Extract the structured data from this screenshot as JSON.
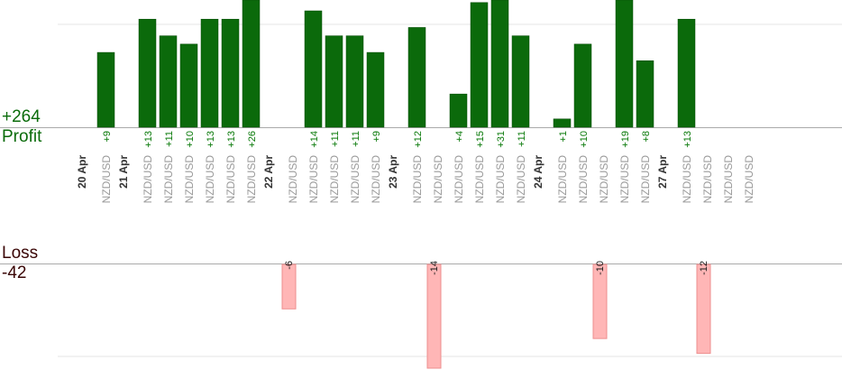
{
  "colors": {
    "profit_bar": "#0b6a0b",
    "profit_bar_edge": "#064a06",
    "profit_text": "#0a7a0a",
    "loss_bar": "#ffb6b6",
    "loss_bar_edge": "#ee8f8f",
    "loss_text": "#1a1a1a",
    "summary_profit": "#0a6b0a",
    "summary_loss": "#3a0606",
    "date_text": "#333333",
    "pair_text": "#9a9a9a",
    "axis": "#aaaaaa",
    "grid": "#e6e6e6"
  },
  "summary": {
    "profit_total": "+264",
    "profit_label": "Profit",
    "loss_label": "Loss",
    "loss_total": "-42"
  },
  "chart_data": {
    "type": "bar",
    "pair": "NZD/USD",
    "profit_ylim": [
      0,
      14
    ],
    "loss_ylim": [
      0,
      14
    ],
    "dates": [
      {
        "label": "20 Apr",
        "trades": [
          9
        ]
      },
      {
        "label": "21 Apr",
        "trades": [
          13,
          11,
          10,
          13,
          13,
          26
        ]
      },
      {
        "label": "22 Apr",
        "trades": [
          -6,
          14,
          11,
          11,
          9
        ]
      },
      {
        "label": "23 Apr",
        "trades": [
          12,
          -14,
          4,
          15,
          31,
          11
        ]
      },
      {
        "label": "24 Apr",
        "trades": [
          1,
          10,
          -10,
          19,
          8
        ]
      },
      {
        "label": "27 Apr",
        "trades": [
          13,
          -12,
          null,
          null
        ]
      }
    ]
  }
}
